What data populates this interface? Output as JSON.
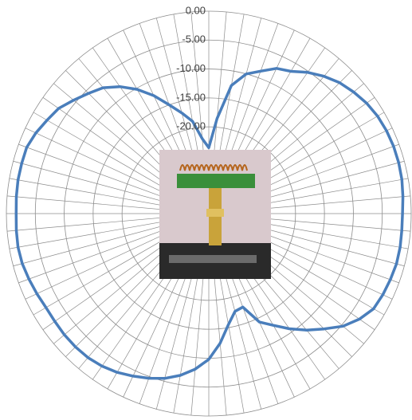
{
  "chart_data": {
    "type": "radar",
    "categories": [
      null,
      null,
      null,
      null,
      null,
      null,
      null,
      null,
      null,
      null,
      null,
      null,
      null,
      null,
      null,
      null,
      null,
      null,
      null,
      null,
      null,
      null,
      null,
      null,
      null,
      null,
      null,
      null,
      null,
      null,
      null,
      null,
      null,
      null,
      null,
      null,
      null,
      null,
      null,
      null,
      null,
      null,
      null,
      null,
      null,
      null,
      null,
      null,
      null,
      null,
      null,
      null,
      null,
      null,
      null,
      null,
      null,
      null,
      null,
      null,
      null,
      null,
      null,
      null,
      null,
      null,
      null,
      null,
      null,
      null,
      null,
      null
    ],
    "values": [
      -23.6,
      -18.5,
      -12.5,
      -10,
      -8.8,
      -7.3,
      -6.6,
      -5.2,
      -4,
      -3,
      -2.3,
      -1.7,
      -1.3,
      -1.1,
      -1,
      -1,
      -1.1,
      -1.3,
      -1.5,
      -1.5,
      -1.4,
      -1.4,
      -1.6,
      -1.8,
      -2.1,
      -3.2,
      -4.7,
      -6.8,
      -8.7,
      -10.7,
      -12.7,
      -14.3,
      -17.8,
      -17.5,
      -15.5,
      -12.5,
      -9.8,
      -8,
      -6.6,
      -5.5,
      -4.7,
      -4,
      -3.3,
      -2.8,
      -2.5,
      -2.4,
      -2.4,
      -2.5,
      -2.5,
      -2.2,
      -1.9,
      -1.6,
      -1.5,
      -1.6,
      -1.7,
      -1.6,
      -1.5,
      -1.5,
      -1.5,
      -2,
      -2.7,
      -3.3,
      -4.5,
      -5.6,
      -6.6,
      -8.2,
      -10.2,
      -12.5,
      -15,
      -17,
      -18.8,
      -22
    ],
    "color": "#4a7ebb",
    "ylim": [
      -35,
      0
    ],
    "yticks": [
      {
        "value": 0,
        "label": "0.00"
      },
      {
        "value": -5,
        "label": "-5.00"
      },
      {
        "value": -10,
        "label": "-10.00"
      },
      {
        "value": -15,
        "label": "-15.00"
      },
      {
        "value": -20,
        "label": "-20.00"
      }
    ],
    "grid": true
  }
}
